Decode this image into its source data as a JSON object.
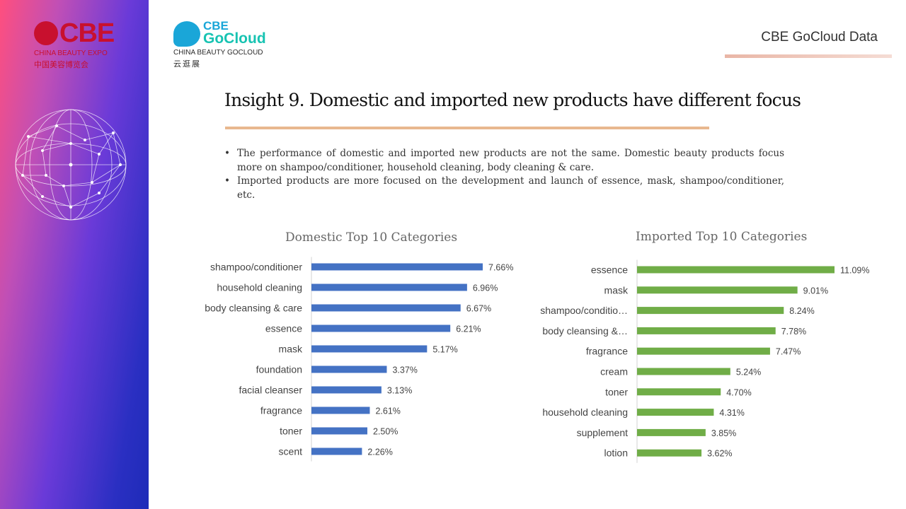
{
  "branding": {
    "cbe_logo": {
      "mark": "CBE",
      "name_en": "CHINA BEAUTY EXPO",
      "name_cn": "中国美容博览会"
    },
    "gocloud_logo": {
      "line1": "CBE",
      "line2": "GoCloud",
      "name_en": "CHINA BEAUTY GOCLOUD",
      "name_cn": "云逛展"
    },
    "header_tag": "CBE GoCloud Data"
  },
  "title": "Insight 9. Domestic and imported new products have different focus",
  "bullets": [
    "The performance of domestic and imported new products are not the same. Domestic beauty products focus more on shampoo/conditioner, household cleaning, body cleaning & care.",
    "Imported products are more focused on the development and launch of essence, mask, shampoo/conditioner, etc."
  ],
  "colors": {
    "domestic": "#4472c4",
    "imported": "#70ad47",
    "accent_line": "#e8b88f"
  },
  "chart_data": [
    {
      "type": "bar",
      "orientation": "horizontal",
      "title": "Domestic Top 10 Categories",
      "categories": [
        "shampoo/conditioner",
        "household cleaning",
        "body cleansing & care",
        "essence",
        "mask",
        "foundation",
        "facial cleanser",
        "fragrance",
        "toner",
        "scent"
      ],
      "values": [
        7.66,
        6.96,
        6.67,
        6.21,
        5.17,
        3.37,
        3.13,
        2.61,
        2.5,
        2.26
      ],
      "labels": [
        "7.66%",
        "6.96%",
        "6.67%",
        "6.21%",
        "5.17%",
        "3.37%",
        "3.13%",
        "2.61%",
        "2.50%",
        "2.26%"
      ],
      "color": "#4472c4"
    },
    {
      "type": "bar",
      "orientation": "horizontal",
      "title": "Imported Top 10 Categories",
      "categories": [
        "essence",
        "mask",
        "shampoo/conditio…",
        "body cleansing &…",
        "fragrance",
        "cream",
        "toner",
        "household cleaning",
        "supplement",
        "lotion"
      ],
      "values": [
        11.09,
        9.01,
        8.24,
        7.78,
        7.47,
        5.24,
        4.7,
        4.31,
        3.85,
        3.62
      ],
      "labels": [
        "11.09%",
        "9.01%",
        "8.24%",
        "7.78%",
        "7.47%",
        "5.24%",
        "4.70%",
        "4.31%",
        "3.85%",
        "3.62%"
      ],
      "color": "#70ad47"
    }
  ]
}
